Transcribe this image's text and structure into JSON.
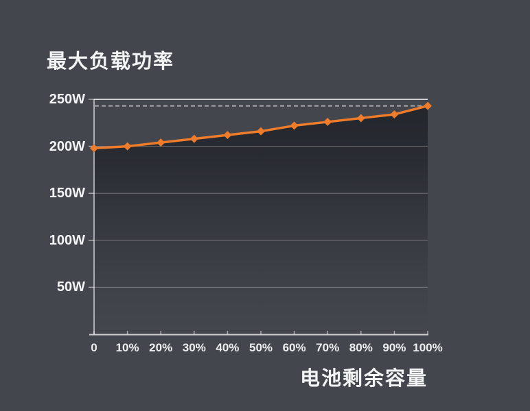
{
  "title": "最大负载功率",
  "colors": {
    "background": "#43464D",
    "text": "#F3F4F6",
    "accent_orange": "#EE7C2B",
    "grid": "rgba(255,255,255,0.32)",
    "axis": "rgba(255,255,255,0.75)",
    "dashed": "rgba(255,255,255,0.55)",
    "fill_base": "#0E1116"
  },
  "chart_data": {
    "type": "line",
    "title": "最大负载功率",
    "xlabel": "电池剩余容量",
    "ylabel": "",
    "x": [
      0,
      10,
      20,
      30,
      40,
      50,
      60,
      70,
      80,
      90,
      100
    ],
    "x_tick_labels": [
      "0",
      "10%",
      "20%",
      "30%",
      "40%",
      "50%",
      "60%",
      "70%",
      "80%",
      "90%",
      "100%"
    ],
    "series": [
      {
        "name": "最大负载功率",
        "values": [
          198,
          200,
          204,
          208,
          212,
          216,
          222,
          226,
          230,
          234,
          243
        ]
      }
    ],
    "y_ticks": [
      250,
      200,
      150,
      100,
      50
    ],
    "y_tick_labels": [
      "250W",
      "200W",
      "150W",
      "100W",
      "50W"
    ],
    "ylim": [
      0,
      250
    ],
    "xlim": [
      0,
      100
    ],
    "grid": "horizontal",
    "legend": "none",
    "dashed_reference_value": 243,
    "marker": "diamond",
    "area_fill": "dark-gradient-below-line"
  }
}
